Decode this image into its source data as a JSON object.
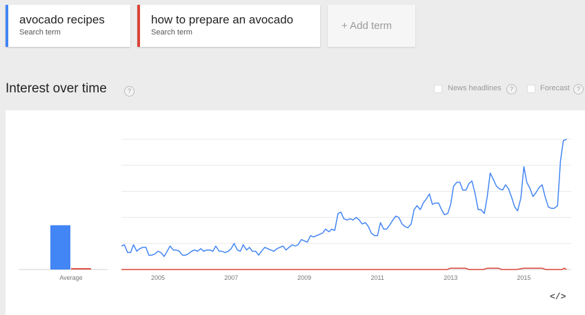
{
  "terms": [
    {
      "name": "avocado recipes",
      "subtitle": "Search term",
      "color": "#4285f4"
    },
    {
      "name": "how to prepare an avocado",
      "subtitle": "Search term",
      "color": "#db4437"
    }
  ],
  "add_term": {
    "label": "+ Add term"
  },
  "section": {
    "title": "Interest over time",
    "help_glyph": "?"
  },
  "options": {
    "news_headlines": {
      "label": "News headlines",
      "checked": false
    },
    "forecast": {
      "label": "Forecast",
      "checked": false
    }
  },
  "embed": {
    "glyph": "</>",
    "icon": "embed-code-icon"
  },
  "chart_data": {
    "type": "line",
    "ylim": [
      0,
      100
    ],
    "x_ticks": [
      "2005",
      "2007",
      "2009",
      "2011",
      "2013",
      "2015"
    ],
    "x_tick_years": [
      2005,
      2007,
      2009,
      2011,
      2013,
      2015
    ],
    "xlim": [
      2004.0,
      2016.2
    ],
    "grid": true,
    "average": {
      "label": "Average",
      "values": [
        34,
        1
      ]
    },
    "series": [
      {
        "color": "#4285f4",
        "x": [
          2004.0,
          2004.08,
          2004.17,
          2004.25,
          2004.33,
          2004.42,
          2004.5,
          2004.58,
          2004.67,
          2004.75,
          2004.83,
          2004.92,
          2005.0,
          2005.08,
          2005.17,
          2005.25,
          2005.33,
          2005.42,
          2005.5,
          2005.58,
          2005.67,
          2005.75,
          2005.83,
          2005.92,
          2006.0,
          2006.08,
          2006.17,
          2006.25,
          2006.33,
          2006.42,
          2006.5,
          2006.58,
          2006.67,
          2006.75,
          2006.83,
          2006.92,
          2007.0,
          2007.08,
          2007.17,
          2007.25,
          2007.33,
          2007.42,
          2007.5,
          2007.58,
          2007.67,
          2007.75,
          2007.83,
          2007.92,
          2008.0,
          2008.08,
          2008.17,
          2008.25,
          2008.33,
          2008.42,
          2008.5,
          2008.58,
          2008.67,
          2008.75,
          2008.83,
          2008.92,
          2009.0,
          2009.08,
          2009.17,
          2009.25,
          2009.33,
          2009.42,
          2009.5,
          2009.58,
          2009.67,
          2009.75,
          2009.83,
          2009.92,
          2010.0,
          2010.08,
          2010.17,
          2010.25,
          2010.33,
          2010.42,
          2010.5,
          2010.58,
          2010.67,
          2010.75,
          2010.83,
          2010.92,
          2011.0,
          2011.08,
          2011.17,
          2011.25,
          2011.33,
          2011.42,
          2011.5,
          2011.58,
          2011.67,
          2011.75,
          2011.83,
          2011.92,
          2012.0,
          2012.08,
          2012.17,
          2012.25,
          2012.33,
          2012.42,
          2012.5,
          2012.58,
          2012.67,
          2012.75,
          2012.83,
          2012.92,
          2013.0,
          2013.08,
          2013.17,
          2013.25,
          2013.33,
          2013.42,
          2013.5,
          2013.58,
          2013.67,
          2013.75,
          2013.83,
          2013.92,
          2014.0,
          2014.08,
          2014.17,
          2014.25,
          2014.33,
          2014.42,
          2014.5,
          2014.58,
          2014.67,
          2014.75,
          2014.83,
          2014.92,
          2015.0,
          2015.08,
          2015.17,
          2015.25,
          2015.33,
          2015.42,
          2015.5,
          2015.58,
          2015.67,
          2015.75,
          2015.83,
          2015.92,
          2016.0,
          2016.08,
          2016.17
        ],
        "values": [
          18,
          19,
          13,
          13,
          19,
          14,
          16,
          17,
          17,
          11,
          11,
          12,
          14,
          13,
          10,
          14,
          18,
          15,
          15,
          14,
          11,
          11,
          12,
          14,
          15,
          14,
          16,
          14,
          15,
          15,
          14,
          18,
          14,
          14,
          13,
          14,
          16,
          20,
          15,
          14,
          19,
          15,
          17,
          14,
          14,
          11,
          14,
          17,
          16,
          15,
          14,
          16,
          17,
          18,
          15,
          17,
          19,
          18,
          19,
          23,
          22,
          21,
          26,
          25,
          26,
          27,
          28,
          31,
          29,
          31,
          30,
          43,
          44,
          39,
          38,
          39,
          38,
          40,
          38,
          35,
          36,
          33,
          28,
          26,
          26,
          36,
          31,
          31,
          34,
          38,
          41,
          40,
          35,
          33,
          32,
          35,
          46,
          49,
          46,
          51,
          54,
          58,
          50,
          51,
          51,
          46,
          42,
          43,
          50,
          64,
          67,
          67,
          61,
          61,
          66,
          68,
          58,
          46,
          46,
          43,
          56,
          74,
          69,
          64,
          62,
          61,
          65,
          62,
          55,
          48,
          45,
          55,
          79,
          67,
          62,
          56,
          59,
          63,
          65,
          56,
          48,
          47,
          47,
          49,
          83,
          99,
          100
        ],
        "stroke_width": 1.5
      },
      {
        "color": "#db4437",
        "x": [
          2004.0,
          2012.9,
          2013.0,
          2013.4,
          2013.5,
          2013.9,
          2014.0,
          2014.3,
          2014.4,
          2014.8,
          2015.0,
          2015.5,
          2015.6,
          2016.05,
          2016.1,
          2016.17
        ],
        "values": [
          0,
          0,
          1,
          1,
          0,
          0,
          1,
          1,
          0,
          0,
          1,
          1,
          0,
          0,
          1,
          0
        ],
        "stroke_width": 1.5
      }
    ]
  }
}
